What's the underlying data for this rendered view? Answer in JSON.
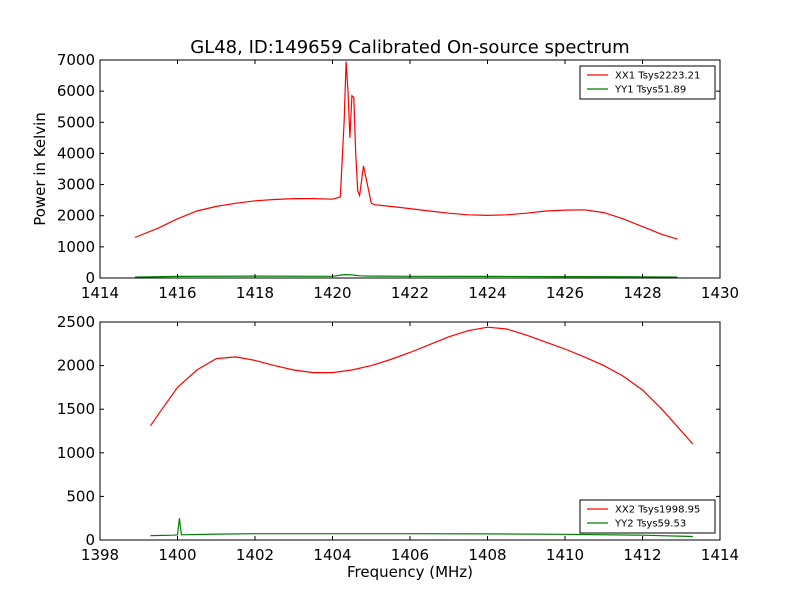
{
  "figure": {
    "title": "GL48, ID:149659 Calibrated On-source spectrum"
  },
  "chart_data": [
    {
      "type": "line",
      "title": "GL48, ID:149659 Calibrated On-source spectrum",
      "xlabel": "",
      "ylabel": "Power in Kelvin",
      "xlim": [
        1414,
        1430
      ],
      "ylim": [
        0,
        7000
      ],
      "xticks": [
        "1414",
        "1416",
        "1418",
        "1420",
        "1422",
        "1424",
        "1426",
        "1428",
        "1430"
      ],
      "yticks": [
        "0",
        "1000",
        "2000",
        "3000",
        "4000",
        "5000",
        "6000",
        "7000"
      ],
      "grid": false,
      "legend": "top-right",
      "series": [
        {
          "name": "XX1 Tsys2223.21",
          "color": "#ff0000",
          "x": [
            1414.9,
            1415.5,
            1416,
            1416.5,
            1417,
            1417.5,
            1418,
            1418.5,
            1419,
            1419.5,
            1420,
            1420.2,
            1420.3,
            1420.35,
            1420.4,
            1420.45,
            1420.5,
            1420.55,
            1420.6,
            1420.65,
            1420.7,
            1420.8,
            1420.9,
            1421,
            1421.1,
            1421.5,
            1422,
            1422.5,
            1423,
            1423.5,
            1424,
            1424.5,
            1425,
            1425.5,
            1426,
            1426.5,
            1427,
            1427.5,
            1428,
            1428.5,
            1428.9
          ],
          "y": [
            1300,
            1600,
            1900,
            2150,
            2300,
            2400,
            2480,
            2520,
            2550,
            2550,
            2530,
            2600,
            5000,
            6950,
            6000,
            4500,
            5850,
            5800,
            4000,
            2800,
            2650,
            3600,
            3000,
            2400,
            2350,
            2300,
            2230,
            2150,
            2080,
            2030,
            2010,
            2030,
            2080,
            2150,
            2180,
            2190,
            2100,
            1900,
            1650,
            1400,
            1250
          ]
        },
        {
          "name": "YY1 Tsys51.89",
          "color": "#008000",
          "x": [
            1414.9,
            1416,
            1418,
            1420,
            1420.3,
            1420.5,
            1420.7,
            1421,
            1422,
            1424,
            1426,
            1428,
            1428.9
          ],
          "y": [
            30,
            50,
            60,
            55,
            110,
            100,
            70,
            60,
            55,
            50,
            45,
            40,
            30
          ]
        }
      ]
    },
    {
      "type": "line",
      "title": "",
      "xlabel": "Frequency (MHz)",
      "ylabel": "",
      "xlim": [
        1398,
        1414
      ],
      "ylim": [
        0,
        2500
      ],
      "xticks": [
        "1398",
        "1400",
        "1402",
        "1404",
        "1406",
        "1408",
        "1410",
        "1412",
        "1414"
      ],
      "yticks": [
        "0",
        "500",
        "1000",
        "1500",
        "2000",
        "2500"
      ],
      "grid": false,
      "legend": "bottom-right",
      "series": [
        {
          "name": "XX2 Tsys1998.95",
          "color": "#ff0000",
          "x": [
            1399.3,
            1399.6,
            1400,
            1400.5,
            1401,
            1401.5,
            1402,
            1402.5,
            1403,
            1403.5,
            1404,
            1404.5,
            1405,
            1405.5,
            1406,
            1406.5,
            1407,
            1407.5,
            1408,
            1408.5,
            1409,
            1409.5,
            1410,
            1410.5,
            1411,
            1411.5,
            1412,
            1412.5,
            1413,
            1413.3
          ],
          "y": [
            1310,
            1500,
            1750,
            1950,
            2080,
            2100,
            2060,
            2000,
            1950,
            1920,
            1920,
            1950,
            2000,
            2070,
            2150,
            2240,
            2330,
            2400,
            2440,
            2420,
            2350,
            2270,
            2190,
            2100,
            2000,
            1880,
            1720,
            1500,
            1250,
            1100
          ]
        },
        {
          "name": "YY2 Tsys59.53",
          "color": "#008000",
          "x": [
            1399.3,
            1399.9,
            1400.0,
            1400.05,
            1400.1,
            1401,
            1402,
            1404,
            1406,
            1408,
            1410,
            1412,
            1413.3
          ],
          "y": [
            50,
            55,
            60,
            250,
            60,
            68,
            72,
            72,
            72,
            70,
            65,
            55,
            40
          ]
        }
      ]
    }
  ]
}
